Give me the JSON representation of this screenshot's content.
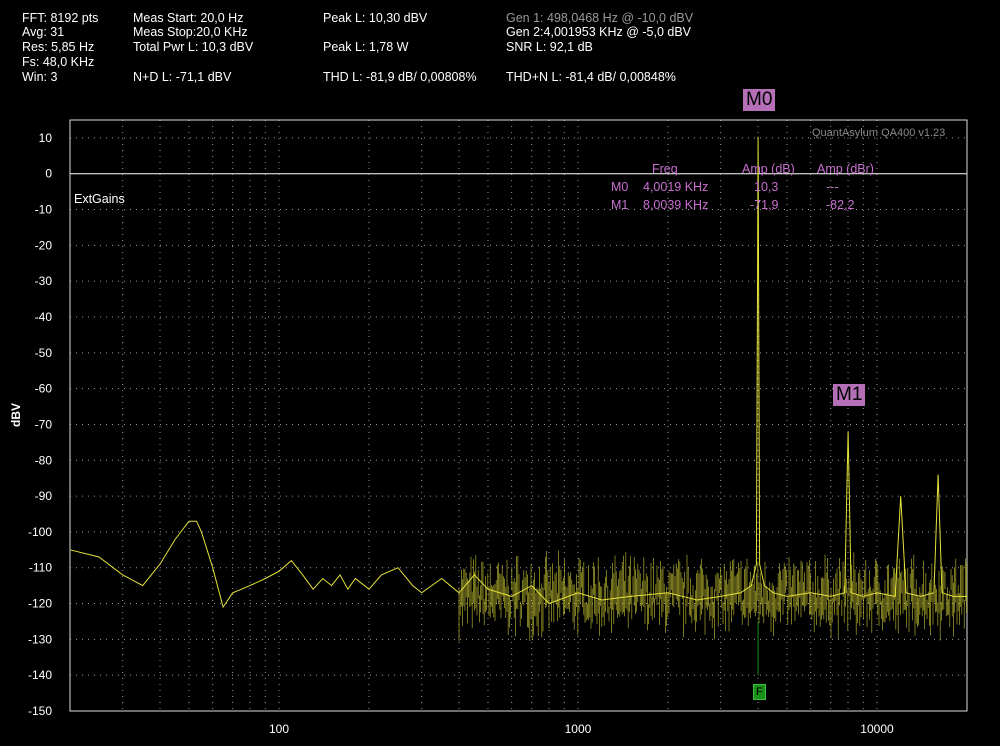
{
  "header": {
    "fft": "FFT: 8192 pts",
    "avg": "Avg: 31",
    "res": "Res: 5,85 Hz",
    "fs": "Fs: 48,0 KHz",
    "win": "Win: 3",
    "meas_start": "Meas Start: 20,0 Hz",
    "meas_stop": "Meas Stop:20,0 KHz",
    "total_pwr": "Total Pwr L: 10,3 dBV",
    "nd": "N+D L: -71,1 dBV",
    "peak_dbv": "Peak L: 10,30 dBV",
    "peak_w": "Peak L: 1,78 W",
    "thd": "THD L: -81,9 dB/ 0,00808%",
    "gen1": "Gen 1: 498,0468 Hz @ -10,0  dBV",
    "gen2": "Gen 2:4,001953 KHz @ -5,0  dBV",
    "snr": "SNR L: 92,1 dB",
    "thdn": "THD+N L: -81,4 dB/ 0,00848%"
  },
  "watermark": "QuantAsylum QA400 v1.23",
  "ext_gains": "ExtGains",
  "markers": {
    "headers": [
      "Freq",
      "Amp (dB)",
      "Amp (dBr)"
    ],
    "rows": [
      {
        "id": "M0",
        "freq": "4,0019 KHz",
        "amp": "10,3",
        "ampr": "---"
      },
      {
        "id": "M1",
        "freq": "8,0039 KHz",
        "amp": "-71,9",
        "ampr": "-82,2"
      }
    ],
    "tag_m0": "M0",
    "tag_m1": "M1"
  },
  "f_tag": "F",
  "colors": {
    "trace": "#e5e23a",
    "marker": "#b46fb7",
    "grid": "#9a9a9a",
    "zero_line": "#ffffff"
  },
  "chart_data": {
    "type": "line",
    "xlabel": "",
    "ylabel": "dBV",
    "xscale": "log",
    "xlim": [
      20,
      20000
    ],
    "ylim": [
      -150,
      15
    ],
    "yticks": [
      10,
      0,
      -10,
      -20,
      -30,
      -40,
      -50,
      -60,
      -70,
      -80,
      -90,
      -100,
      -110,
      -120,
      -130,
      -140,
      -150
    ],
    "xticks": [
      100,
      1000,
      10000
    ],
    "xtick_labels": [
      "100",
      "1000",
      "10000"
    ],
    "grid": true,
    "series": [
      {
        "color": "#e5e23a",
        "x": [
          20,
          25,
          30,
          35,
          40,
          45,
          50,
          53,
          55,
          60,
          65,
          70,
          75,
          80,
          90,
          100,
          110,
          120,
          130,
          140,
          150,
          160,
          170,
          180,
          200,
          220,
          250,
          280,
          300,
          350,
          400,
          450,
          500,
          600,
          700,
          800,
          1000,
          1200,
          1500,
          2000,
          2500,
          3000,
          3500,
          3800,
          3950,
          4002,
          4050,
          4200,
          4500,
          5000,
          6000,
          7000,
          7800,
          8004,
          8200,
          9000,
          10000,
          11500,
          12006,
          12500,
          14000,
          15500,
          16008,
          16500,
          18000,
          20000
        ],
        "y": [
          -105,
          -107,
          -112,
          -115,
          -109,
          -102,
          -97,
          -97,
          -100,
          -110,
          -121,
          -117,
          -116,
          -115,
          -113,
          -111,
          -108,
          -112,
          -116,
          -113,
          -115,
          -112,
          -116,
          -113,
          -116,
          -112,
          -110,
          -115,
          -117,
          -113,
          -117,
          -112,
          -116,
          -118,
          -115,
          -120,
          -117,
          -119,
          -118,
          -117,
          -119,
          -118,
          -117,
          -115,
          -109,
          10.3,
          -109,
          -115,
          -117,
          -118,
          -117,
          -118,
          -117,
          -71.9,
          -117,
          -118,
          -117,
          -118,
          -90,
          -117,
          -118,
          -117,
          -84,
          -117,
          -118,
          -118
        ]
      }
    ],
    "markers": [
      {
        "name": "M0",
        "x": 4001.9,
        "y": 10.3
      },
      {
        "name": "M1",
        "x": 8003.9,
        "y": -71.9
      }
    ],
    "f_marker_x": 4001.9
  }
}
